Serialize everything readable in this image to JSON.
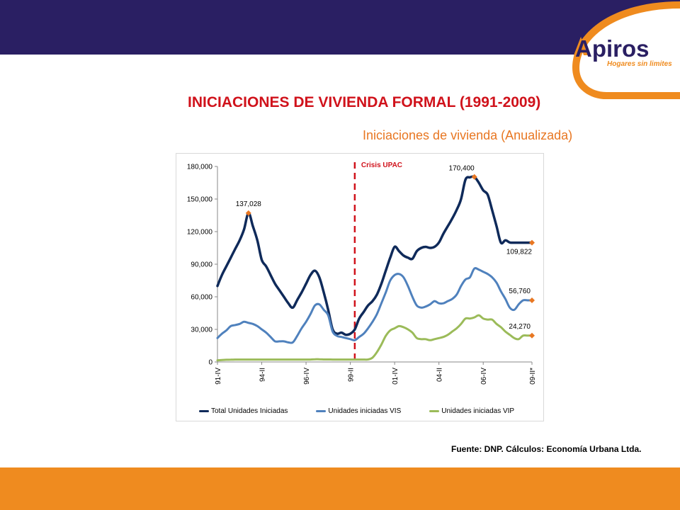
{
  "logo": {
    "name": "Apiros",
    "tagline": "Hogares sin limites"
  },
  "colors": {
    "top_bar": "#2a1f63",
    "bottom_bar": "#ef8b1f",
    "title": "#d0121b",
    "subtitle": "#e87722"
  },
  "header": {
    "title": "INICIACIONES DE VIVIENDA FORMAL (1991-2009)",
    "subtitle": "Iniciaciones de vivienda (Anualizada)"
  },
  "source": "Fuente: DNP. Cálculos: Economía Urbana Ltda.",
  "chart_data": {
    "type": "line",
    "ylim": [
      0,
      180000
    ],
    "y_ticks": [
      "0",
      "30,000",
      "60,000",
      "90,000",
      "120,000",
      "150,000",
      "180,000"
    ],
    "x_tick_labels": [
      "91-IV",
      "94-II",
      "96-IV",
      "99-II",
      "01-IV",
      "04-II",
      "06-IV",
      "09-II*"
    ],
    "x_tick_indices": [
      0,
      10,
      20,
      30,
      40,
      50,
      60,
      71
    ],
    "grid": false,
    "legend_position": "bottom",
    "annotation": {
      "label": "Crisis UPAC",
      "x_index": 31,
      "color": "#d0121b"
    },
    "series": [
      {
        "name": "Total Unidades Iniciadas",
        "color": "#0f2a5a",
        "values": [
          70000,
          80000,
          88000,
          96000,
          104000,
          112000,
          122000,
          137028,
          125000,
          112000,
          94000,
          88000,
          80000,
          72000,
          66000,
          60000,
          54000,
          50000,
          57000,
          64000,
          72000,
          80000,
          84000,
          78000,
          64000,
          48000,
          30000,
          26000,
          27000,
          25000,
          26000,
          30000,
          40000,
          46000,
          52000,
          56000,
          62000,
          72000,
          84000,
          96000,
          106000,
          102000,
          98000,
          96000,
          95000,
          102000,
          105000,
          106000,
          105000,
          106000,
          110000,
          118000,
          125000,
          132000,
          140000,
          150000,
          168000,
          170000,
          170400,
          165000,
          158000,
          154000,
          140000,
          125000,
          109822,
          112000,
          110000,
          109822,
          109822,
          109822,
          109822,
          109822
        ],
        "markers": [
          {
            "index": 7,
            "label": "137,028"
          },
          {
            "index": 58,
            "label": "170,400"
          },
          {
            "index": 71,
            "label": "109,822"
          }
        ]
      },
      {
        "name": "Unidades iniciadas VIS",
        "color": "#4f81bd",
        "values": [
          22000,
          26000,
          29000,
          33000,
          34000,
          35000,
          37000,
          36000,
          35000,
          33000,
          30000,
          27000,
          23000,
          19000,
          19000,
          19000,
          18000,
          18000,
          24000,
          31000,
          37000,
          44000,
          52000,
          53000,
          48000,
          43000,
          28000,
          24000,
          23000,
          22000,
          21000,
          20000,
          23000,
          26000,
          31000,
          37000,
          44000,
          54000,
          64000,
          75000,
          80000,
          81000,
          78000,
          70000,
          60000,
          52000,
          50000,
          51000,
          53000,
          56000,
          54000,
          54000,
          56000,
          58000,
          62000,
          70000,
          76000,
          78000,
          86000,
          85000,
          83000,
          81000,
          78000,
          73000,
          65000,
          58000,
          50000,
          48000,
          53000,
          56760,
          56760,
          56760
        ],
        "markers": [
          {
            "index": 71,
            "label": "56,760"
          }
        ]
      },
      {
        "name": "Unidades iniciadas VIP",
        "color": "#9bbb59",
        "values": [
          1500,
          1800,
          2000,
          2100,
          2200,
          2200,
          2200,
          2200,
          2200,
          2200,
          2200,
          2200,
          2200,
          2200,
          2200,
          2200,
          2200,
          2200,
          2200,
          2200,
          2200,
          2200,
          2500,
          2500,
          2300,
          2300,
          2200,
          2200,
          2200,
          2200,
          2200,
          2200,
          2200,
          2200,
          2300,
          4000,
          9000,
          16000,
          24000,
          29000,
          31000,
          33000,
          32000,
          30000,
          27000,
          22000,
          21000,
          21000,
          20000,
          21000,
          22000,
          23000,
          25000,
          28000,
          31000,
          35000,
          40000,
          40000,
          41000,
          43000,
          40000,
          39000,
          39000,
          35000,
          32000,
          28000,
          25000,
          22000,
          21000,
          24270,
          24270,
          24270
        ],
        "markers": [
          {
            "index": 71,
            "label": "24,270"
          }
        ]
      }
    ]
  }
}
